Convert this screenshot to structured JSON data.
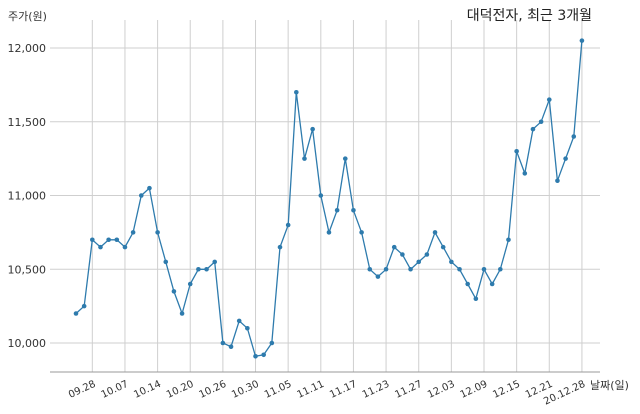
{
  "chart_data": {
    "type": "line",
    "title": "대덕전자, 최근 3개월",
    "ylabel": "주가(원)",
    "xlabel": "날짜(일)",
    "ylim": [
      9800,
      12200
    ],
    "yticks": [
      10000,
      10500,
      11000,
      11500,
      12000
    ],
    "ytick_labels": [
      "10,000",
      "10,500",
      "11,000",
      "11,500",
      "12,000"
    ],
    "xtick_labels": [
      {
        "label": "09.28",
        "index": 2
      },
      {
        "label": "10.07",
        "index": 6
      },
      {
        "label": "10.14",
        "index": 10
      },
      {
        "label": "10.20",
        "index": 14
      },
      {
        "label": "10.26",
        "index": 18
      },
      {
        "label": "10.30",
        "index": 22
      },
      {
        "label": "11.05",
        "index": 26
      },
      {
        "label": "11.11",
        "index": 30
      },
      {
        "label": "11.17",
        "index": 34
      },
      {
        "label": "11.23",
        "index": 38
      },
      {
        "label": "11.27",
        "index": 42
      },
      {
        "label": "12.03",
        "index": 46
      },
      {
        "label": "12.09",
        "index": 50
      },
      {
        "label": "12.15",
        "index": 54
      },
      {
        "label": "12.21",
        "index": 58
      },
      {
        "label": "20.12.28",
        "index": 62
      }
    ],
    "grid": true,
    "color": "#2e7bad",
    "series": [
      {
        "values": [
          10200,
          10250,
          10700,
          10650,
          10700,
          10700,
          10650,
          10750,
          11000,
          11050,
          10750,
          10550,
          10350,
          10200,
          10400,
          10500,
          10500,
          10550,
          10000,
          9975,
          10150,
          10100,
          9910,
          9920,
          10000,
          10650,
          10800,
          11700,
          11250,
          11450,
          11000,
          10750,
          10900,
          11250,
          10900,
          10750,
          10500,
          10450,
          10500,
          10650,
          10600,
          10500,
          10550,
          10600,
          10750,
          10650,
          10550,
          10500,
          10400,
          10300,
          10500,
          10400,
          10500,
          10700,
          11300,
          11150,
          11450,
          11500,
          11650,
          11100,
          11250,
          11400,
          12050
        ]
      }
    ]
  }
}
